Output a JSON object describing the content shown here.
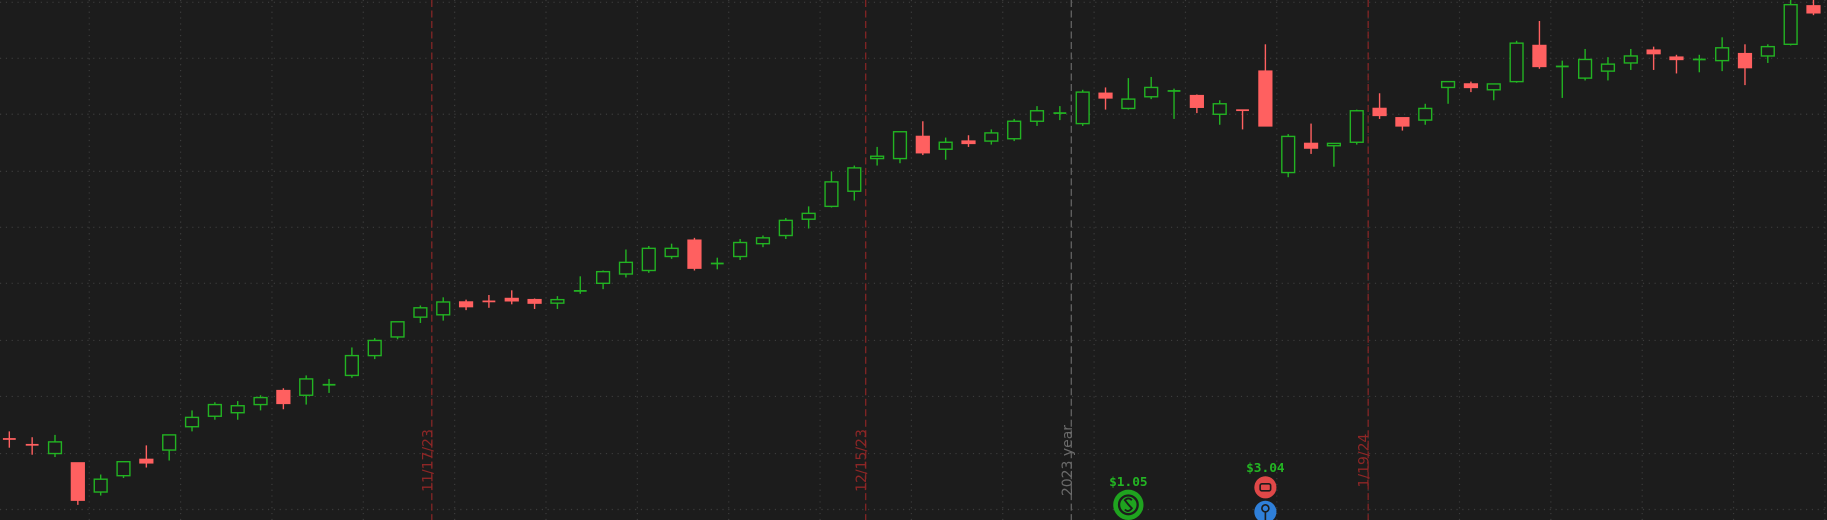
{
  "chart_data": {
    "type": "candlestick",
    "ylim": [
      0,
      446
    ],
    "yticks": [
      9,
      57,
      106,
      154,
      203,
      251,
      299,
      348,
      396,
      444
    ],
    "grid": true,
    "up_color": "#22b322",
    "down_color": "#ff6060",
    "open": [
      70,
      65,
      57,
      49,
      24,
      38,
      52,
      60,
      80,
      89,
      92,
      99,
      111,
      107,
      116,
      124,
      141,
      157,
      174,
      176,
      187,
      188,
      190,
      189,
      186,
      196,
      203,
      211,
      214,
      226,
      240,
      220,
      226,
      237,
      244,
      258,
      269,
      282,
      310,
      310,
      329,
      318,
      325,
      325,
      327,
      342,
      349,
      340,
      366,
      353,
      363,
      368,
      364,
      348,
      352,
      385,
      298,
      323,
      321,
      324,
      353,
      345,
      343,
      371,
      374,
      369,
      376,
      407,
      389,
      379,
      385,
      392,
      403,
      397,
      395,
      394,
      400,
      398,
      408,
      441
    ],
    "high": [
      76,
      71,
      73,
      49,
      39,
      50,
      64,
      73,
      94,
      101,
      102,
      107,
      113,
      124,
      121,
      148,
      156,
      170,
      184,
      191,
      189,
      193,
      197,
      190,
      192,
      209,
      214,
      232,
      235,
      237,
      242,
      225,
      241,
      244,
      259,
      269,
      299,
      304,
      320,
      333,
      342,
      328,
      330,
      335,
      344,
      355,
      355,
      369,
      371,
      379,
      380,
      370,
      365,
      360,
      352,
      408,
      331,
      340,
      323,
      352,
      366,
      345,
      357,
      376,
      376,
      374,
      411,
      428,
      394,
      404,
      397,
      404,
      406,
      399,
      399,
      414,
      408,
      408,
      446,
      446
    ],
    "low": [
      62,
      56,
      54,
      13,
      21,
      36,
      45,
      51,
      76,
      86,
      86,
      94,
      95,
      99,
      109,
      122,
      138,
      155,
      169,
      171,
      180,
      182,
      185,
      181,
      181,
      194,
      198,
      208,
      212,
      224,
      214,
      215,
      223,
      234,
      241,
      250,
      268,
      274,
      304,
      306,
      313,
      309,
      320,
      322,
      325,
      338,
      343,
      338,
      352,
      352,
      361,
      344,
      349,
      339,
      335,
      338,
      294,
      314,
      303,
      322,
      344,
      334,
      339,
      357,
      367,
      360,
      375,
      387,
      362,
      377,
      377,
      386,
      386,
      383,
      384,
      385,
      373,
      392,
      407,
      433
    ],
    "close": [
      69,
      64,
      67,
      17,
      35,
      50,
      49,
      73,
      88,
      99,
      98,
      105,
      100,
      121,
      116,
      141,
      154,
      170,
      182,
      187,
      183,
      187,
      188,
      186,
      189,
      197,
      213,
      221,
      233,
      233,
      216,
      220,
      238,
      242,
      257,
      263,
      290,
      302,
      312,
      333,
      315,
      324,
      323,
      332,
      342,
      351,
      349,
      367,
      362,
      361,
      371,
      368,
      354,
      357,
      351,
      338,
      329,
      319,
      323,
      351,
      347,
      338,
      353,
      376,
      371,
      374,
      409,
      389,
      389,
      395,
      391,
      398,
      400,
      395,
      395,
      405,
      388,
      406,
      442,
      435
    ],
    "markers": [
      {
        "label": "11/17/23",
        "candle": 19,
        "color": "#8e2626"
      },
      {
        "label": "12/15/23",
        "candle": 38,
        "color": "#8e2626"
      },
      {
        "label": "2023 year",
        "candle": 47,
        "color": "#6a6a6a"
      },
      {
        "label": "1/19/24",
        "candle": 60,
        "color": "#8e2626"
      }
    ],
    "events": [
      {
        "label": "$1.05",
        "candle": 49,
        "kind": "dividend"
      },
      {
        "label": "$3.04",
        "candle": 55,
        "kind": "earnings"
      }
    ]
  }
}
